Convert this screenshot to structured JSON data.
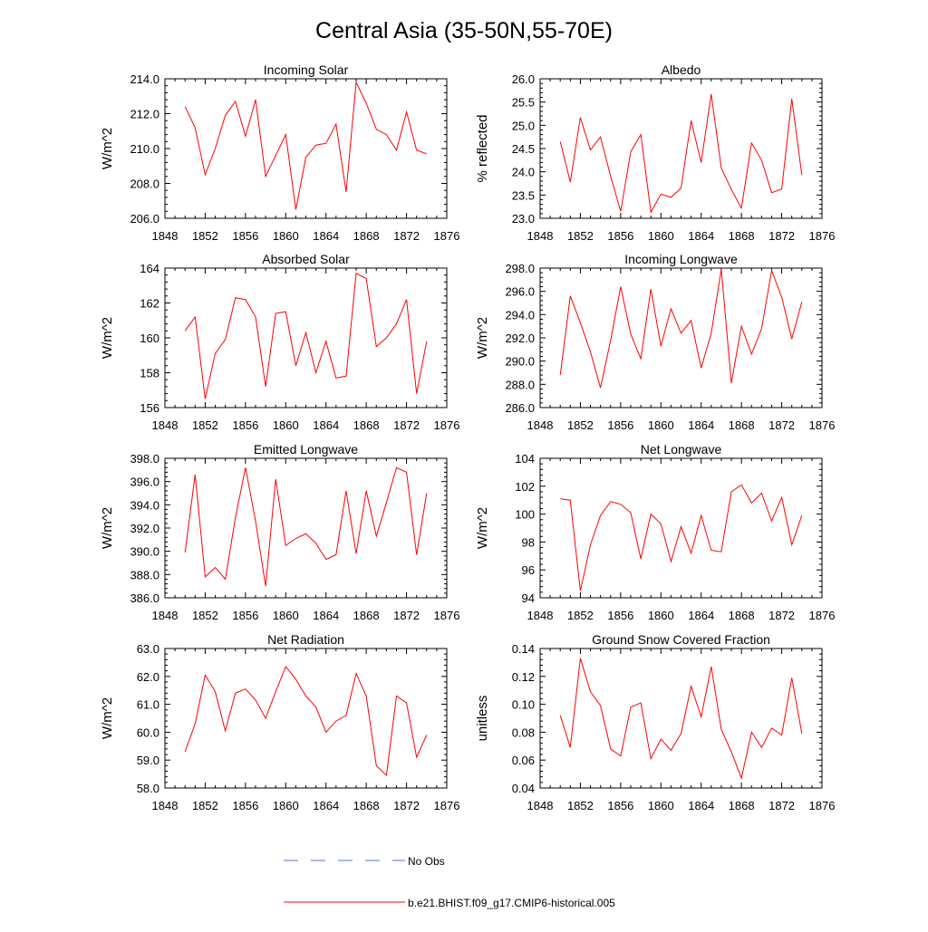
{
  "figure": {
    "title": "Central Asia (35-50N,55-70E)",
    "legend": [
      {
        "label": "No Obs",
        "style": "dashed",
        "color": "#5a6fd0"
      },
      {
        "label": "b.e21.BHIST.f09_g17.CMIP6-historical.005",
        "style": "solid",
        "color": "#ff0000"
      }
    ]
  },
  "chart_data": [
    {
      "type": "line",
      "title": "Incoming Solar",
      "ylabel": "W/m^2",
      "xlim": [
        1848,
        1876
      ],
      "xticks": [
        1848,
        1852,
        1856,
        1860,
        1864,
        1868,
        1872,
        1876
      ],
      "ylim": [
        206,
        214
      ],
      "yticks": [
        206,
        208,
        210,
        212,
        214
      ],
      "ytick_labels": [
        "206.0",
        "208.0",
        "210.0",
        "212.0",
        "214.0"
      ],
      "series": [
        {
          "color": "#ff0000",
          "x": [
            1850,
            1851,
            1852,
            1853,
            1854,
            1855,
            1856,
            1857,
            1858,
            1859,
            1860,
            1861,
            1862,
            1863,
            1864,
            1865,
            1866,
            1867,
            1868,
            1869,
            1870,
            1871,
            1872,
            1873,
            1874
          ],
          "values": [
            212.4,
            211.2,
            208.5,
            210.0,
            211.9,
            212.7,
            210.7,
            212.8,
            208.4,
            209.6,
            210.8,
            206.5,
            209.5,
            210.2,
            210.3,
            211.4,
            207.5,
            213.8,
            212.6,
            211.1,
            210.8,
            209.9,
            212.1,
            209.9,
            209.7
          ]
        }
      ]
    },
    {
      "type": "line",
      "title": "Albedo",
      "ylabel": "% reflected",
      "xlim": [
        1848,
        1876
      ],
      "xticks": [
        1848,
        1852,
        1856,
        1860,
        1864,
        1868,
        1872,
        1876
      ],
      "ylim": [
        23,
        26
      ],
      "yticks": [
        23,
        23.5,
        24,
        24.5,
        25,
        25.5,
        26
      ],
      "ytick_labels": [
        "23.0",
        "23.5",
        "24.0",
        "24.5",
        "25.0",
        "25.5",
        "26.0"
      ],
      "series": [
        {
          "color": "#ff0000",
          "x": [
            1850,
            1851,
            1852,
            1853,
            1854,
            1855,
            1856,
            1857,
            1858,
            1859,
            1860,
            1861,
            1862,
            1863,
            1864,
            1865,
            1866,
            1867,
            1868,
            1869,
            1870,
            1871,
            1872,
            1873,
            1874
          ],
          "values": [
            24.65,
            23.78,
            25.17,
            24.47,
            24.75,
            23.9,
            23.15,
            24.43,
            24.8,
            23.13,
            23.52,
            23.45,
            23.65,
            25.1,
            24.2,
            25.67,
            24.08,
            23.62,
            23.22,
            24.62,
            24.25,
            23.55,
            23.63,
            25.57,
            23.93
          ]
        }
      ]
    },
    {
      "type": "line",
      "title": "Absorbed Solar",
      "ylabel": "W/m^2",
      "xlim": [
        1848,
        1876
      ],
      "xticks": [
        1848,
        1852,
        1856,
        1860,
        1864,
        1868,
        1872,
        1876
      ],
      "ylim": [
        156,
        164
      ],
      "yticks": [
        156,
        158,
        160,
        162,
        164
      ],
      "ytick_labels": [
        "156",
        "158",
        "160",
        "162",
        "164"
      ],
      "series": [
        {
          "color": "#ff0000",
          "x": [
            1850,
            1851,
            1852,
            1853,
            1854,
            1855,
            1856,
            1857,
            1858,
            1859,
            1860,
            1861,
            1862,
            1863,
            1864,
            1865,
            1866,
            1867,
            1868,
            1869,
            1870,
            1871,
            1872,
            1873,
            1874
          ],
          "values": [
            160.4,
            161.2,
            156.5,
            159.1,
            159.9,
            162.3,
            162.2,
            161.2,
            157.2,
            161.4,
            161.5,
            158.4,
            160.3,
            158.0,
            159.8,
            157.7,
            157.8,
            163.7,
            163.4,
            159.5,
            160.0,
            160.8,
            162.2,
            156.8,
            159.8
          ]
        }
      ]
    },
    {
      "type": "line",
      "title": "Incoming Longwave",
      "ylabel": "W/m^2",
      "xlim": [
        1848,
        1876
      ],
      "xticks": [
        1848,
        1852,
        1856,
        1860,
        1864,
        1868,
        1872,
        1876
      ],
      "ylim": [
        286,
        298
      ],
      "yticks": [
        286,
        288,
        290,
        292,
        294,
        296,
        298
      ],
      "ytick_labels": [
        "286.0",
        "288.0",
        "290.0",
        "292.0",
        "294.0",
        "296.0",
        "298.0"
      ],
      "series": [
        {
          "color": "#ff0000",
          "x": [
            1850,
            1851,
            1852,
            1853,
            1854,
            1855,
            1856,
            1857,
            1858,
            1859,
            1860,
            1861,
            1862,
            1863,
            1864,
            1865,
            1866,
            1867,
            1868,
            1869,
            1870,
            1871,
            1872,
            1873,
            1874
          ],
          "values": [
            288.8,
            295.6,
            293.3,
            290.8,
            287.7,
            291.8,
            296.4,
            292.3,
            290.2,
            296.2,
            291.3,
            294.5,
            292.4,
            293.5,
            289.4,
            292.4,
            297.9,
            288.1,
            293.0,
            290.6,
            292.8,
            297.8,
            295.5,
            291.9,
            295.1
          ]
        }
      ]
    },
    {
      "type": "line",
      "title": "Emitted Longwave",
      "ylabel": "W/m^2",
      "xlim": [
        1848,
        1876
      ],
      "xticks": [
        1848,
        1852,
        1856,
        1860,
        1864,
        1868,
        1872,
        1876
      ],
      "ylim": [
        386,
        398
      ],
      "yticks": [
        386,
        388,
        390,
        392,
        394,
        396,
        398
      ],
      "ytick_labels": [
        "386.0",
        "388.0",
        "390.0",
        "392.0",
        "394.0",
        "396.0",
        "398.0"
      ],
      "series": [
        {
          "color": "#ff0000",
          "x": [
            1850,
            1851,
            1852,
            1853,
            1854,
            1855,
            1856,
            1857,
            1858,
            1859,
            1860,
            1861,
            1862,
            1863,
            1864,
            1865,
            1866,
            1867,
            1868,
            1869,
            1870,
            1871,
            1872,
            1873,
            1874
          ],
          "values": [
            389.9,
            396.6,
            387.8,
            388.6,
            387.6,
            392.9,
            397.2,
            392.6,
            387.0,
            396.2,
            390.5,
            391.1,
            391.5,
            390.7,
            389.3,
            389.7,
            395.2,
            389.8,
            395.2,
            391.3,
            394.2,
            397.2,
            396.8,
            389.7,
            395.0
          ]
        }
      ]
    },
    {
      "type": "line",
      "title": "Net Longwave",
      "ylabel": "W/m^2",
      "xlim": [
        1848,
        1876
      ],
      "xticks": [
        1848,
        1852,
        1856,
        1860,
        1864,
        1868,
        1872,
        1876
      ],
      "ylim": [
        94,
        104
      ],
      "yticks": [
        94,
        96,
        98,
        100,
        102,
        104
      ],
      "ytick_labels": [
        "94",
        "96",
        "98",
        "100",
        "102",
        "104"
      ],
      "series": [
        {
          "color": "#ff0000",
          "x": [
            1850,
            1851,
            1852,
            1853,
            1854,
            1855,
            1856,
            1857,
            1858,
            1859,
            1860,
            1861,
            1862,
            1863,
            1864,
            1865,
            1866,
            1867,
            1868,
            1869,
            1870,
            1871,
            1872,
            1873,
            1874
          ],
          "values": [
            101.1,
            101.0,
            94.5,
            97.8,
            99.9,
            100.9,
            100.7,
            100.1,
            96.8,
            100.0,
            99.3,
            96.6,
            99.1,
            97.2,
            99.9,
            97.4,
            97.3,
            101.6,
            102.1,
            100.8,
            101.5,
            99.5,
            101.2,
            97.8,
            99.9
          ]
        }
      ]
    },
    {
      "type": "line",
      "title": "Net Radiation",
      "ylabel": "W/m^2",
      "xlim": [
        1848,
        1876
      ],
      "xticks": [
        1848,
        1852,
        1856,
        1860,
        1864,
        1868,
        1872,
        1876
      ],
      "ylim": [
        58,
        63
      ],
      "yticks": [
        58,
        59,
        60,
        61,
        62,
        63
      ],
      "ytick_labels": [
        "58.0",
        "59.0",
        "60.0",
        "61.0",
        "62.0",
        "63.0"
      ],
      "series": [
        {
          "color": "#ff0000",
          "x": [
            1850,
            1851,
            1852,
            1853,
            1854,
            1855,
            1856,
            1857,
            1858,
            1859,
            1860,
            1861,
            1862,
            1863,
            1864,
            1865,
            1866,
            1867,
            1868,
            1869,
            1870,
            1871,
            1872,
            1873,
            1874
          ],
          "values": [
            59.3,
            60.3,
            62.05,
            61.45,
            60.05,
            61.4,
            61.55,
            61.15,
            60.5,
            61.45,
            62.35,
            61.9,
            61.3,
            60.9,
            60.0,
            60.4,
            60.6,
            62.1,
            61.3,
            58.8,
            58.45,
            61.3,
            61.05,
            59.1,
            59.9
          ]
        }
      ]
    },
    {
      "type": "line",
      "title": "Ground Snow Covered Fraction",
      "ylabel": "unitless",
      "xlim": [
        1848,
        1876
      ],
      "xticks": [
        1848,
        1852,
        1856,
        1860,
        1864,
        1868,
        1872,
        1876
      ],
      "ylim": [
        0.04,
        0.14
      ],
      "yticks": [
        0.04,
        0.06,
        0.08,
        0.1,
        0.12,
        0.14
      ],
      "ytick_labels": [
        "0.04",
        "0.06",
        "0.08",
        "0.10",
        "0.12",
        "0.14"
      ],
      "series": [
        {
          "color": "#ff0000",
          "x": [
            1850,
            1851,
            1852,
            1853,
            1854,
            1855,
            1856,
            1857,
            1858,
            1859,
            1860,
            1861,
            1862,
            1863,
            1864,
            1865,
            1866,
            1867,
            1868,
            1869,
            1870,
            1871,
            1872,
            1873,
            1874
          ],
          "values": [
            0.092,
            0.069,
            0.133,
            0.109,
            0.099,
            0.068,
            0.063,
            0.098,
            0.101,
            0.061,
            0.075,
            0.067,
            0.079,
            0.113,
            0.091,
            0.127,
            0.082,
            0.066,
            0.047,
            0.08,
            0.069,
            0.083,
            0.078,
            0.119,
            0.079
          ]
        }
      ]
    }
  ]
}
